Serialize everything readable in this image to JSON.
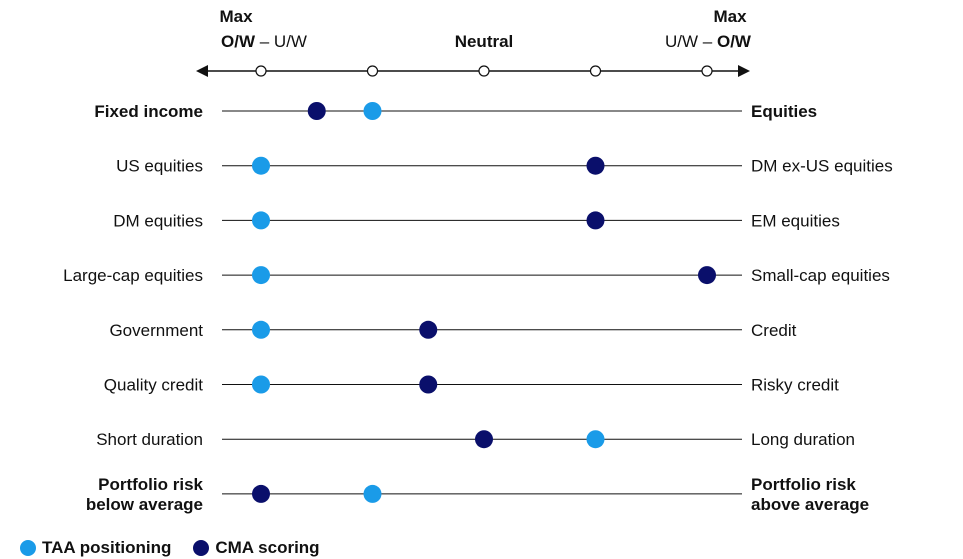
{
  "scale_header": {
    "left": {
      "top": "Max",
      "bold": "O/W",
      "sep": " – ",
      "rest": "U/W"
    },
    "center": "Neutral",
    "right": {
      "top": "Max",
      "rest": "U/W",
      "sep": " – ",
      "bold": "O/W"
    }
  },
  "legend": [
    {
      "label": "TAA positioning",
      "color": "#1A9BE8"
    },
    {
      "label": "CMA scoring",
      "color": "#0A0F6B"
    }
  ],
  "chart_data": {
    "type": "scatter",
    "x_range": [
      -2,
      2
    ],
    "scale_ticks": [
      -2,
      -1,
      0,
      1,
      2
    ],
    "rows": [
      {
        "left": "Fixed income",
        "right": "Equities",
        "bold": true,
        "taa": -1,
        "cma": -1.5
      },
      {
        "left": "US equities",
        "right": "DM ex-US equities",
        "bold": false,
        "taa": -2,
        "cma": 1
      },
      {
        "left": "DM equities",
        "right": "EM equities",
        "bold": false,
        "taa": -2,
        "cma": 1
      },
      {
        "left": "Large-cap equities",
        "right": "Small-cap equities",
        "bold": false,
        "taa": -2,
        "cma": 2
      },
      {
        "left": "Government",
        "right": "Credit",
        "bold": false,
        "taa": -2,
        "cma": -0.5
      },
      {
        "left": "Quality credit",
        "right": "Risky credit",
        "bold": false,
        "taa": -2,
        "cma": -0.5
      },
      {
        "left": "Short duration",
        "right": "Long duration",
        "bold": false,
        "taa": 1,
        "cma": 0
      },
      {
        "left": "Portfolio risk\nbelow average",
        "right": "Portfolio risk\nabove average",
        "bold": true,
        "taa": -1,
        "cma": -2
      }
    ]
  }
}
